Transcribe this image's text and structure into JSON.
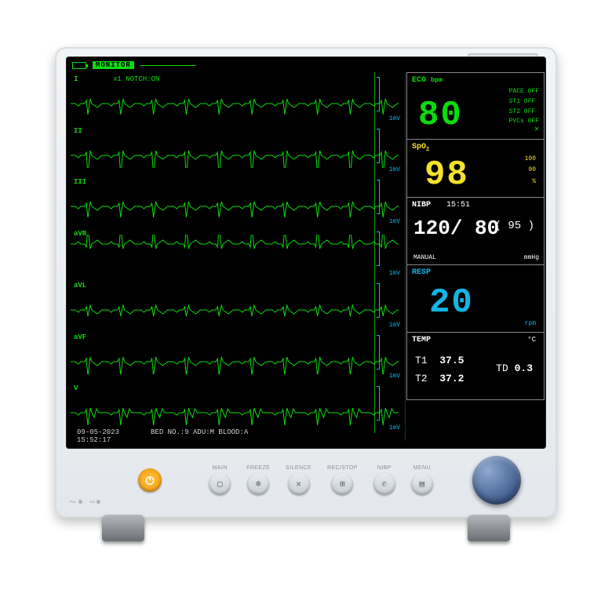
{
  "header": {
    "mode": "MONITOR"
  },
  "waveforms": [
    {
      "label": "I",
      "extra": "x1     NOTCH:ON",
      "type": "qrs-small",
      "invert": false
    },
    {
      "label": "II",
      "extra": "",
      "type": "qrs-tall",
      "invert": false
    },
    {
      "label": "III",
      "extra": "",
      "type": "qrs-small",
      "invert": false
    },
    {
      "label": "aVR",
      "extra": "",
      "type": "qrs-spike",
      "invert": true
    },
    {
      "label": "aVL",
      "extra": "",
      "type": "qrs-tiny",
      "invert": false
    },
    {
      "label": "aVF",
      "extra": "",
      "type": "qrs-med",
      "invert": false
    },
    {
      "label": "V",
      "extra": "",
      "type": "qrs-biphasic",
      "invert": false
    }
  ],
  "mV": "1mV",
  "ecg": {
    "title": "ECG",
    "unit": "bpm",
    "value": "80",
    "pace": "PACE  OFF",
    "st1": "ST1   OFF",
    "st2": "ST2   OFF",
    "pvcs": "PVCs  OFF",
    "x": "✕"
  },
  "spo2": {
    "title": "SpO₂",
    "value": "98",
    "hi": "100",
    "lo": "90",
    "pct": "%"
  },
  "nibp": {
    "title": "NIBP",
    "time": "15:51",
    "sys": "120",
    "slash": "/",
    "dia": "80",
    "avg": "( 95 )",
    "mode": "MANUAL",
    "unit": "mmHg"
  },
  "resp": {
    "title": "RESP",
    "value": "20",
    "unit": "rpm"
  },
  "temp": {
    "title": "TEMP",
    "unit": "°C",
    "t1_label": "T1",
    "t1": "37.5",
    "t2_label": "T2",
    "t2": "37.2",
    "td_label": "TD",
    "td": "0.3"
  },
  "footer": {
    "datetime_date": "09-05-2023",
    "datetime_time": "15:52:17",
    "bed": "BED NO.:9 ADU:M BLOOD:A"
  },
  "buttons": {
    "main": "MAIN",
    "freeze": "FREEZE",
    "silence": "SILENCE",
    "rec": "REC/STOP",
    "nibp": "NIBP",
    "menu": "MENU"
  },
  "colors": {
    "ecg": "#0bdc0b",
    "spo2": "#f5e32a",
    "nibp": "#ffffff",
    "resp": "#11b5e6",
    "temp": "#ffffff"
  }
}
